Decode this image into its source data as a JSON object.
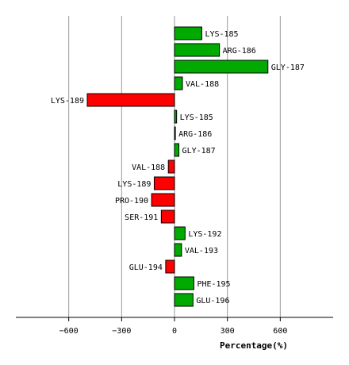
{
  "chart_data": {
    "type": "bar",
    "orientation": "horizontal",
    "xlabel": "Percentage(%)",
    "xlim": [
      -900,
      900
    ],
    "xticks": [
      -600,
      -300,
      0,
      300,
      600
    ],
    "grid": true,
    "categories": [
      "LYS-185",
      "ARG-186",
      "GLY-187",
      "VAL-188",
      "LYS-189",
      "LYS-185",
      "ARG-186",
      "GLY-187",
      "VAL-188",
      "LYS-189",
      "PRO-190",
      "SER-191",
      "LYS-192",
      "VAL-193",
      "GLU-194",
      "PHE-195",
      "GLU-196"
    ],
    "values": [
      155,
      255,
      530,
      45,
      -495,
      12,
      5,
      25,
      -35,
      -115,
      -130,
      -75,
      60,
      40,
      -50,
      110,
      105
    ],
    "colors": {
      "positive": "#00aa00",
      "negative": "#ff0000"
    }
  }
}
